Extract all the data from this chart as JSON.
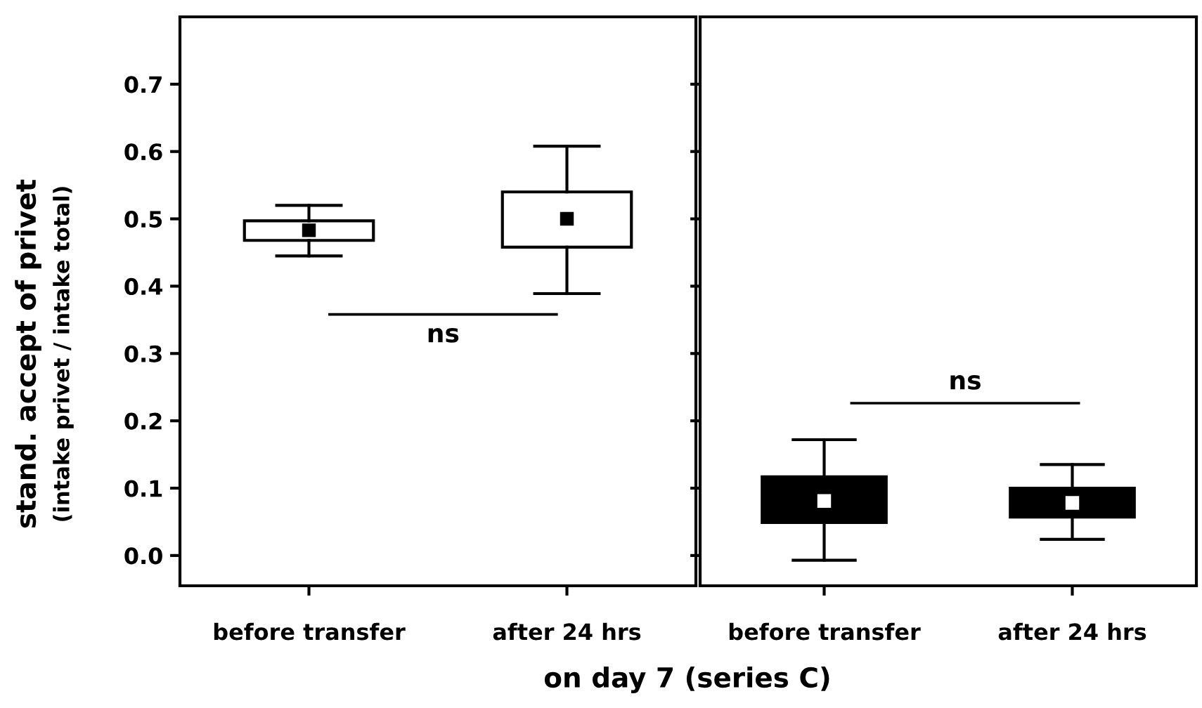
{
  "chart_data": [
    {
      "type": "box",
      "categories": [
        "before transfer",
        "after 24 hrs"
      ],
      "ylabel": "stand. accept of privet\n(intake privet / intake total)",
      "xlabel": "on day 7 (series C)",
      "ylim": [
        -0.045,
        0.8
      ],
      "yticks": [
        {
          "value": 0.0,
          "label": "0.0"
        },
        0.1,
        0.2,
        0.3,
        0.4,
        0.5,
        0.6,
        0.7
      ],
      "colors": [
        "#ffffff",
        "#ffffff"
      ],
      "boxes": [
        {
          "low": 0.445,
          "q1": 0.468,
          "q3": 0.497,
          "high": 0.52,
          "mean": 0.483
        },
        {
          "low": 0.389,
          "q1": 0.458,
          "q3": 0.54,
          "high": 0.608,
          "mean": 0.5
        }
      ],
      "annotations": [
        "ns"
      ]
    },
    {
      "type": "box",
      "categories": [
        "before transfer",
        "after 24 hrs"
      ],
      "ylim": [
        -0.045,
        0.8
      ],
      "yticks": [
        {
          "value": 0.0,
          "label": null
        },
        {
          "value": 0.1,
          "label": null
        },
        {
          "value": 0.2,
          "label": null
        },
        {
          "value": 0.3,
          "label": null
        },
        {
          "value": 0.4,
          "label": null
        },
        {
          "value": 0.5,
          "label": null
        },
        {
          "value": 0.6,
          "label": null
        },
        {
          "value": 0.7,
          "label": null
        }
      ],
      "tick_labels": "x",
      "colors": [
        "#000000",
        "#000000"
      ],
      "boxes": [
        {
          "low": -0.007,
          "q1": 0.049,
          "q3": 0.117,
          "high": 0.172,
          "mean": 0.081
        },
        {
          "low": 0.024,
          "q1": 0.057,
          "q3": 0.1,
          "high": 0.135,
          "mean": 0.078
        }
      ],
      "annotations": [
        "ns"
      ]
    }
  ]
}
